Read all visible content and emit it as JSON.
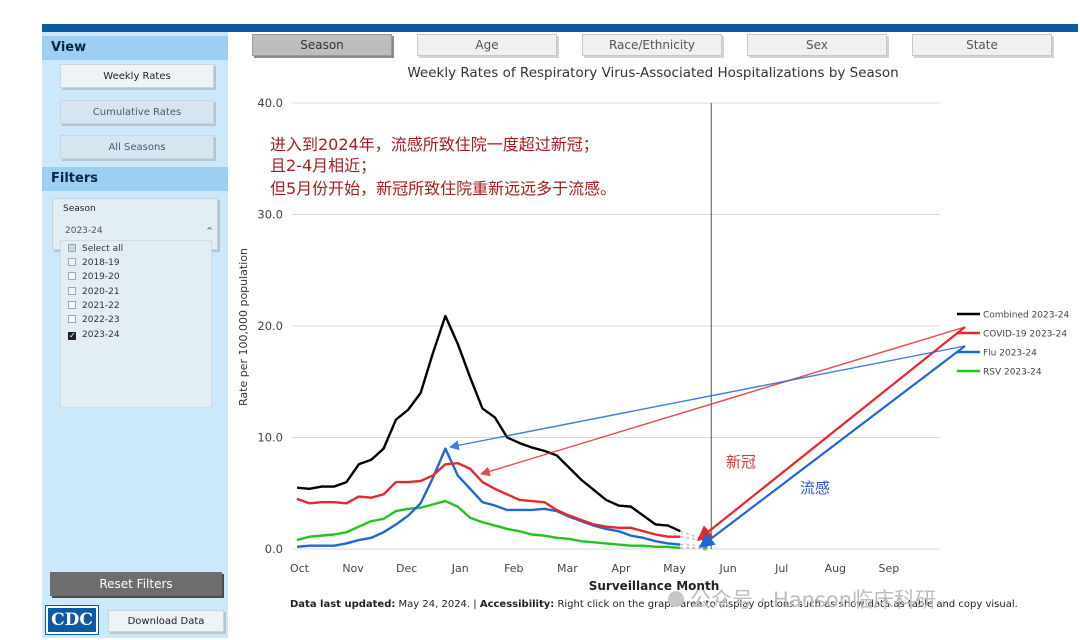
{
  "sidebar": {
    "view_header": "View",
    "buttons": [
      "Weekly Rates",
      "Cumulative Rates",
      "All Seasons"
    ],
    "filters_header": "Filters",
    "filter": {
      "title": "Season",
      "selected": "2023-24",
      "options": [
        {
          "label": "Select all",
          "state": "partial"
        },
        {
          "label": "2018-19",
          "state": "unchecked"
        },
        {
          "label": "2019-20",
          "state": "unchecked"
        },
        {
          "label": "2020-21",
          "state": "unchecked"
        },
        {
          "label": "2021-22",
          "state": "unchecked"
        },
        {
          "label": "2022-23",
          "state": "unchecked"
        },
        {
          "label": "2023-24",
          "state": "checked"
        }
      ]
    },
    "reset_label": "Reset Filters",
    "logo_text": "CDC",
    "download_label": "Download Data"
  },
  "tabs": [
    {
      "label": "Season",
      "active": true
    },
    {
      "label": "Age",
      "active": false
    },
    {
      "label": "Race/Ethnicity",
      "active": false
    },
    {
      "label": "Sex",
      "active": false
    },
    {
      "label": "State",
      "active": false
    }
  ],
  "colors": {
    "combined": "#000000",
    "covid": "#e8262b",
    "flu": "#1f66d6",
    "rsv": "#21c31d",
    "annotation_text": "#a81c1c",
    "flu_label": "#3355cc"
  },
  "chart_data": {
    "type": "line",
    "title": "Weekly Rates of Respiratory Virus-Associated Hospitalizations by Season",
    "xlabel": "Surveillance Month",
    "ylabel": "Rate per 100,000 population",
    "ylim": [
      0,
      40
    ],
    "yticks": [
      "0.0",
      "10.0",
      "20.0",
      "30.0",
      "40.0"
    ],
    "months": [
      "Oct",
      "Nov",
      "Dec",
      "Jan",
      "Feb",
      "Mar",
      "Apr",
      "May",
      "Jun",
      "Jul",
      "Aug",
      "Sep"
    ],
    "x_range_weeks": [
      0,
      52
    ],
    "current_week_marker": 33.5,
    "grid": "horizontal",
    "legend_position": "right",
    "series": [
      {
        "name": "Combined 2023-24",
        "color_key": "combined",
        "values": [
          5.5,
          5.4,
          5.6,
          5.6,
          6.0,
          7.6,
          8.0,
          9.0,
          11.6,
          12.5,
          14.0,
          17.6,
          20.9,
          18.4,
          15.4,
          12.6,
          11.8,
          10.0,
          9.5,
          9.1,
          8.8,
          8.4,
          7.3,
          6.2,
          5.3,
          4.4,
          3.9,
          3.8,
          3.0,
          2.2,
          2.1,
          1.6
        ],
        "projection": [
          1.2,
          0.85
        ]
      },
      {
        "name": "COVID-19 2023-24",
        "color_key": "covid",
        "values": [
          4.5,
          4.1,
          4.2,
          4.2,
          4.1,
          4.7,
          4.6,
          4.9,
          6.0,
          6.0,
          6.1,
          6.6,
          7.6,
          7.7,
          7.2,
          6.0,
          5.4,
          4.9,
          4.4,
          4.3,
          4.2,
          3.5,
          3.0,
          2.6,
          2.2,
          2.0,
          1.9,
          1.9,
          1.6,
          1.3,
          1.1,
          1.1
        ],
        "projection": [
          0.9,
          0.75
        ]
      },
      {
        "name": "Flu 2023-24",
        "color_key": "flu",
        "values": [
          0.2,
          0.3,
          0.3,
          0.3,
          0.5,
          0.8,
          1.0,
          1.5,
          2.2,
          3.0,
          4.1,
          6.4,
          9.0,
          6.6,
          5.4,
          4.2,
          3.9,
          3.5,
          3.5,
          3.5,
          3.6,
          3.4,
          2.9,
          2.5,
          2.1,
          1.8,
          1.6,
          1.2,
          1.0,
          0.7,
          0.5,
          0.4
        ],
        "projection": [
          0.35,
          0.3
        ]
      },
      {
        "name": "RSV 2023-24",
        "color_key": "rsv",
        "values": [
          0.8,
          1.1,
          1.2,
          1.3,
          1.5,
          2.0,
          2.5,
          2.7,
          3.4,
          3.6,
          3.7,
          4.0,
          4.3,
          3.8,
          2.8,
          2.4,
          2.1,
          1.8,
          1.6,
          1.3,
          1.2,
          1.0,
          0.9,
          0.7,
          0.6,
          0.5,
          0.4,
          0.3,
          0.3,
          0.2,
          0.2,
          0.1
        ],
        "projection": [
          0.1,
          0.1
        ]
      }
    ],
    "annotations": {
      "lines": [
        "进入到2024年，流感所致住院一度超过新冠；",
        "且2-4月相近；",
        "但5月份开始，新冠所致住院重新远远多于流感。"
      ],
      "covid_label": "新冠",
      "flu_label": "流感"
    }
  },
  "footer": {
    "updated_label": "Data last updated:",
    "updated_value": " May 24, 2024. | ",
    "access_label": "Accessibility:",
    "access_value": " Right click on the graph area to display options such as show data as table and copy visual."
  },
  "watermark": "公众号 · Hanson临床科研"
}
